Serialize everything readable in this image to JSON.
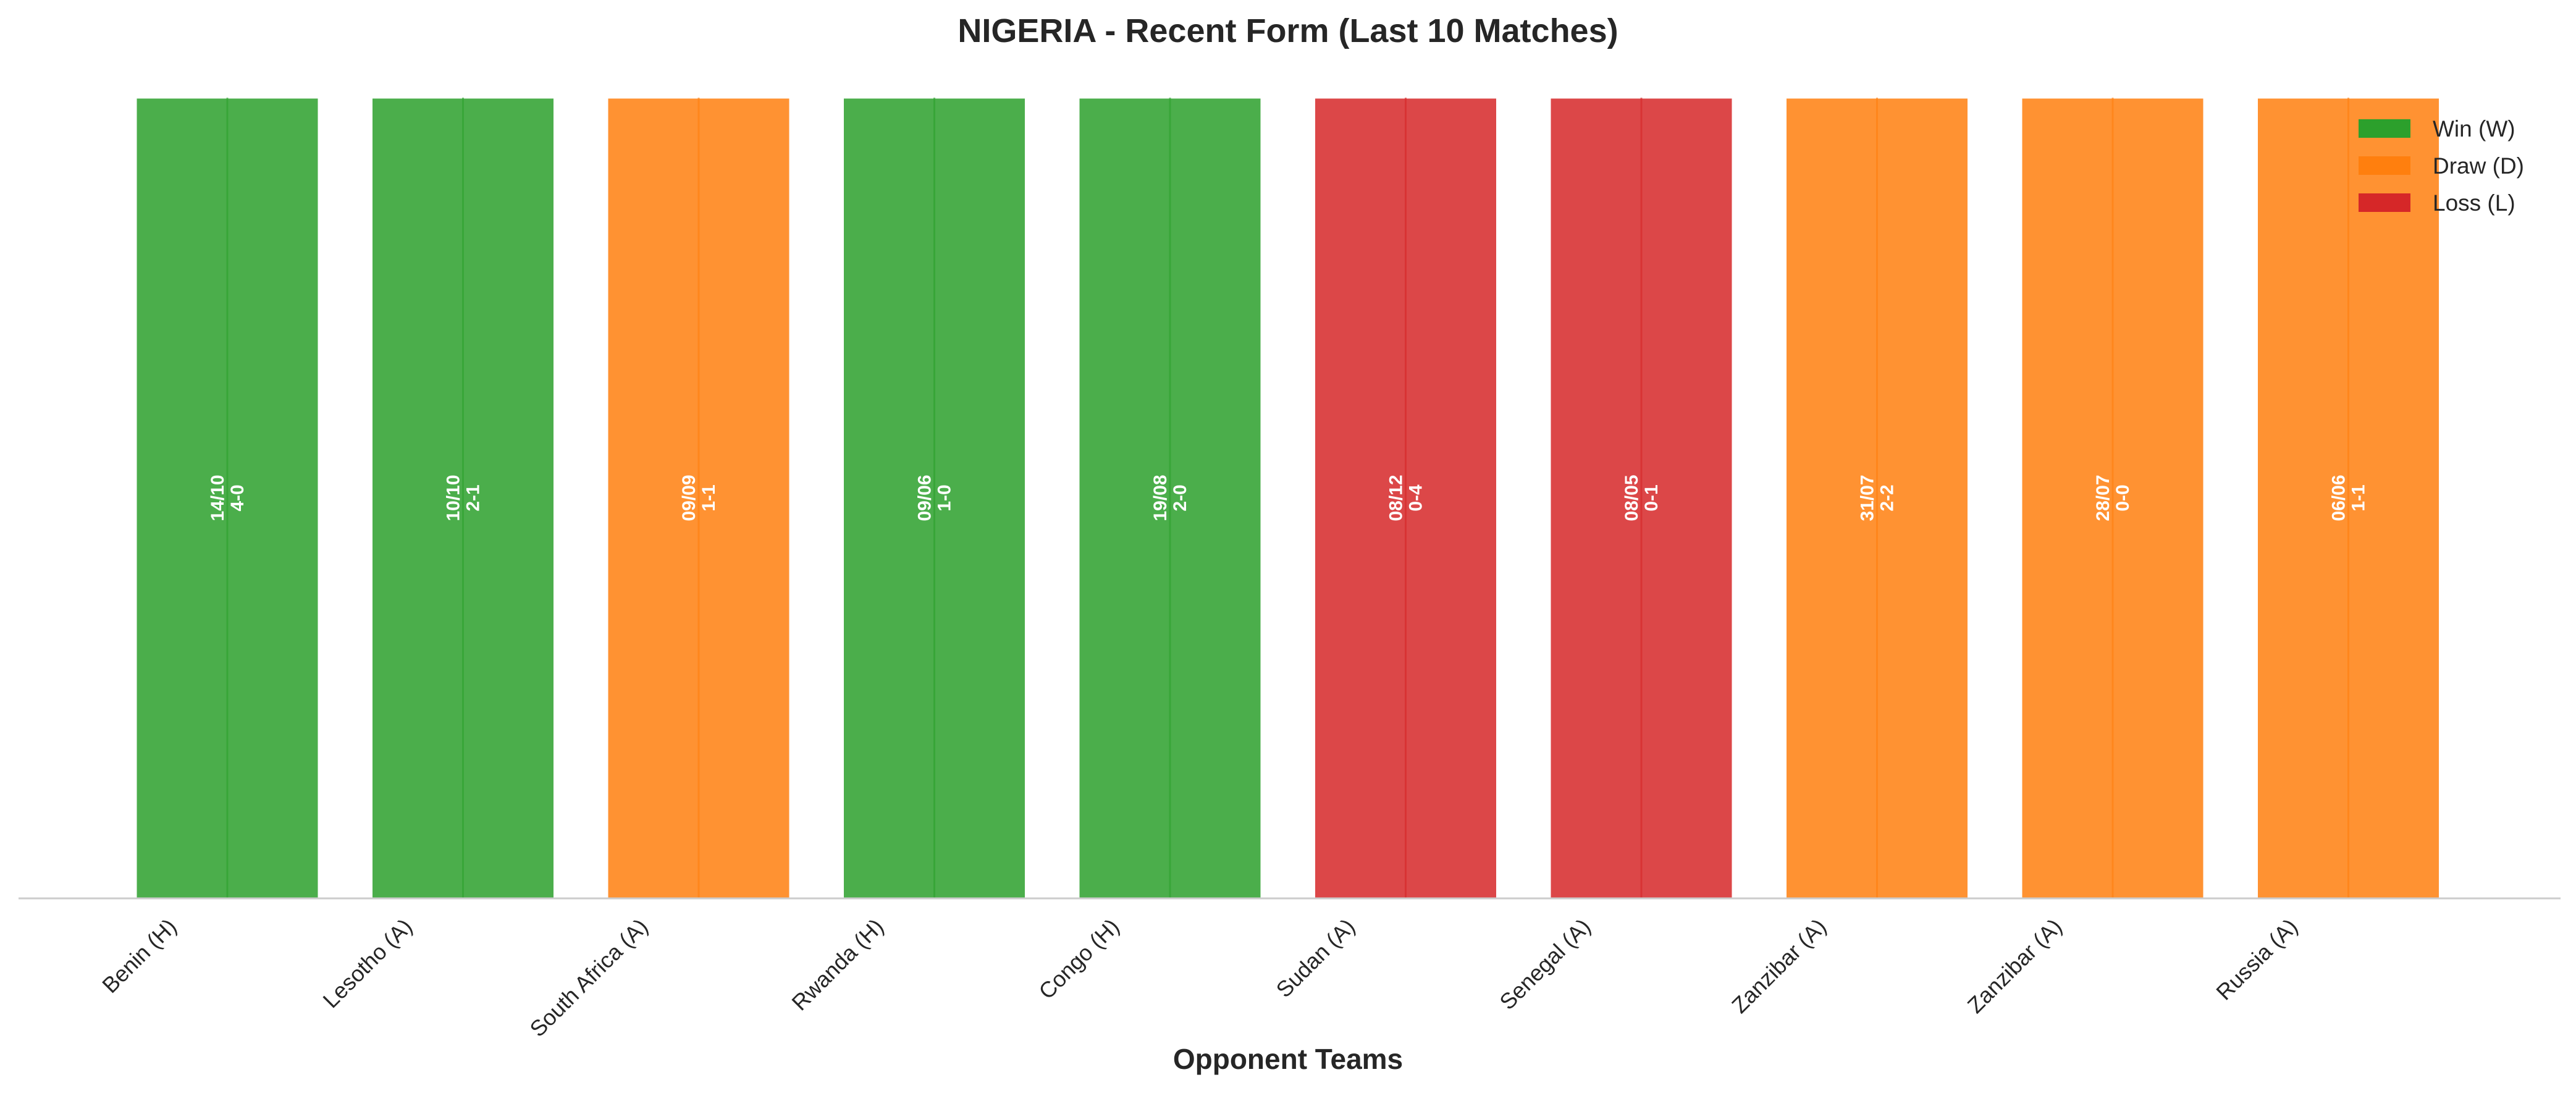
{
  "chart_data": {
    "type": "bar",
    "title": "NIGERIA - Recent Form (Last 10 Matches)",
    "xlabel": "Opponent Teams",
    "ylabel": "",
    "categories": [
      "Benin (H)",
      "Lesotho (A)",
      "South Africa (A)",
      "Rwanda (H)",
      "Congo (H)",
      "Sudan (A)",
      "Senegal (A)",
      "Zanzibar (A)",
      "Zanzibar (A)",
      "Russia (A)"
    ],
    "values": [
      1,
      1,
      1,
      1,
      1,
      1,
      1,
      1,
      1,
      1
    ],
    "results": [
      "W",
      "W",
      "D",
      "W",
      "W",
      "L",
      "L",
      "D",
      "D",
      "D"
    ],
    "dates": [
      "14/10",
      "10/10",
      "09/09",
      "09/06",
      "19/08",
      "08/12",
      "08/05",
      "31/07",
      "28/07",
      "06/06"
    ],
    "scores": [
      "4-0",
      "2-1",
      "1-1",
      "1-0",
      "2-0",
      "0-4",
      "0-1",
      "2-2",
      "0-0",
      "1-1"
    ],
    "ylim": [
      0,
      1
    ],
    "grid": false,
    "legend_position": "top-right",
    "legend": [
      {
        "key": "W",
        "label": "Win (W)",
        "color": "#2ca02c"
      },
      {
        "key": "D",
        "label": "Draw (D)",
        "color": "#ff7f0e"
      },
      {
        "key": "L",
        "label": "Loss (L)",
        "color": "#d62728"
      }
    ]
  }
}
